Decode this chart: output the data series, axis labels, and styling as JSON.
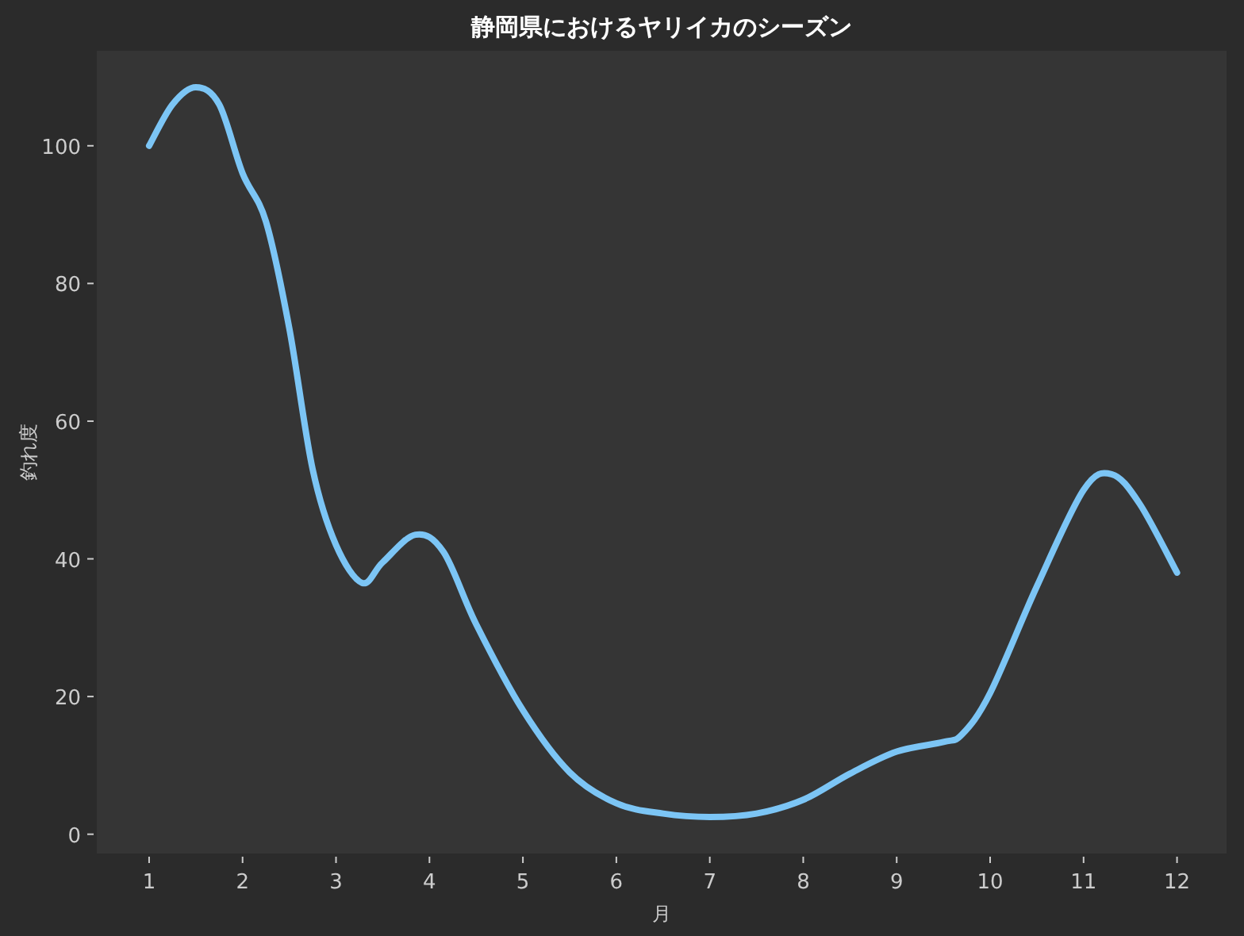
{
  "chart_data": {
    "type": "line",
    "title": "静岡県におけるヤリイカのシーズン",
    "xlabel": "月",
    "ylabel": "釣れ度",
    "x": [
      1,
      1.25,
      1.5,
      1.75,
      2,
      2.25,
      2.5,
      2.75,
      3,
      3.28,
      3.5,
      3.85,
      4.15,
      4.5,
      5,
      5.5,
      6,
      6.5,
      7,
      7.5,
      8,
      8.5,
      9,
      9.5,
      9.7,
      10,
      10.5,
      11,
      11.3,
      11.6,
      12
    ],
    "series": [
      {
        "color": "#7cc5f5",
        "values": [
          100,
          106,
          108.5,
          106,
          96,
          89,
          73.5,
          53,
          42,
          36.5,
          39.5,
          43.5,
          41,
          30.5,
          18,
          9,
          4.5,
          3,
          2.5,
          3,
          5,
          8.8,
          12,
          13.4,
          14.5,
          20.5,
          36,
          50,
          52.3,
          48,
          38
        ]
      }
    ],
    "xlim": [
      0.44,
      12.53
    ],
    "ylim": [
      -2.8,
      113.8
    ],
    "xticks": [
      1,
      2,
      3,
      4,
      5,
      6,
      7,
      8,
      9,
      10,
      11,
      12
    ],
    "yticks": [
      0,
      20,
      40,
      60,
      80,
      100
    ],
    "grid": false,
    "marker": "none",
    "line_style": "solid"
  }
}
